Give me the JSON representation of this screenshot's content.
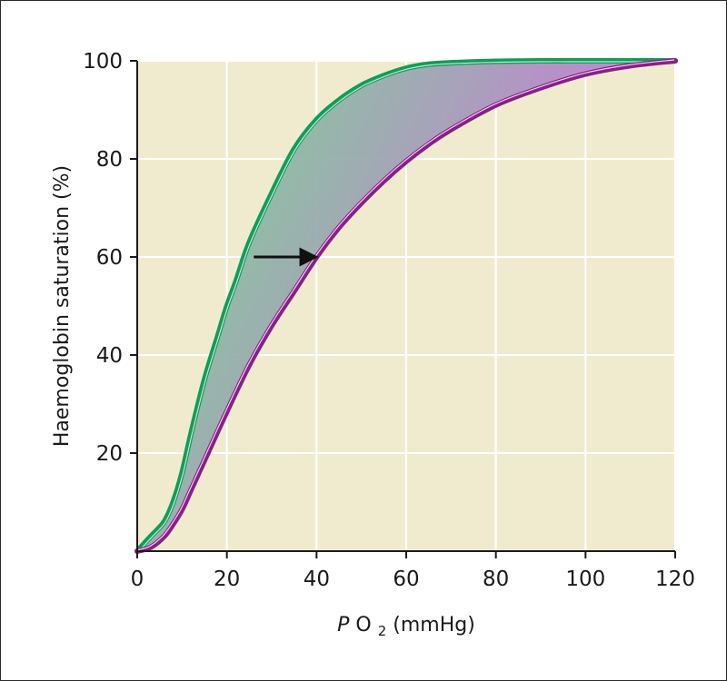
{
  "chart_data": {
    "type": "line",
    "title": "",
    "xlabel": {
      "prefix": "P",
      "main": "O",
      "subscript": "2",
      "units": " (mmHg)"
    },
    "ylabel": "Haemoglobin saturation (%)",
    "xlim": [
      0,
      120
    ],
    "ylim": [
      0,
      100
    ],
    "xticks": [
      0,
      20,
      40,
      60,
      80,
      100,
      120
    ],
    "yticks": [
      20,
      40,
      60,
      80,
      100
    ],
    "grid": true,
    "legend": "none",
    "colors": {
      "plot_background": "#f0ebcf",
      "grid": "#ffffff",
      "axis": "#1a1a1a",
      "left_curve": "#119d57",
      "right_curve": "#8a1e8a",
      "band_green": "#84c39c",
      "band_purple": "#b58ac8",
      "arrow": "#111111"
    },
    "series": [
      {
        "x": [
          0,
          3,
          6,
          8,
          10,
          12,
          15,
          18,
          20,
          22,
          25,
          30,
          35,
          40,
          45,
          50,
          55,
          60,
          65,
          70,
          80,
          90,
          100,
          110,
          120
        ],
        "y": [
          0,
          3,
          6,
          10,
          16,
          24,
          35,
          44,
          50,
          55,
          63,
          73,
          82,
          88,
          92,
          95,
          97,
          98.5,
          99.3,
          99.6,
          99.9,
          100,
          100,
          100,
          100
        ]
      },
      {
        "x": [
          0,
          3,
          6,
          8,
          10,
          12,
          15,
          20,
          25,
          30,
          35,
          40,
          45,
          50,
          55,
          60,
          65,
          70,
          80,
          90,
          100,
          110,
          120
        ],
        "y": [
          0,
          0.8,
          3,
          5.5,
          8.5,
          12.5,
          18.5,
          28.5,
          38,
          46,
          53,
          60,
          66,
          71,
          75.5,
          79.5,
          83,
          86,
          91,
          94.5,
          97.3,
          99,
          100
        ]
      }
    ],
    "annotations": [
      {
        "type": "arrow",
        "from": [
          26,
          60
        ],
        "to": [
          40,
          60
        ]
      }
    ]
  }
}
